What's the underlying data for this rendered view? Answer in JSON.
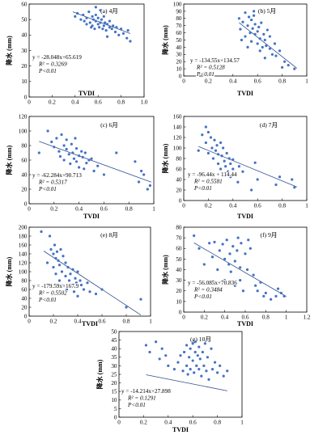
{
  "chart_data": [
    {
      "type": "scatter",
      "label": "(a) 4月",
      "xlabel": "TVDI",
      "ylabel": "降水 (mm)",
      "xlim": [
        0,
        1.0
      ],
      "ylim": [
        0,
        60
      ],
      "xticks": [
        "0",
        "0.2",
        "0.4",
        "0.6",
        "0.8",
        "1.0"
      ],
      "yticks": [
        "0",
        "10",
        "20",
        "30",
        "40",
        "50",
        "60"
      ],
      "annotation": [
        "y = -28.048x+65.619",
        "R² = 0.3269",
        "P<0.01"
      ],
      "trendline": {
        "slope": -28.048,
        "intercept": 65.619,
        "x_range": [
          0.38,
          0.88
        ]
      },
      "x": [
        0.4,
        0.42,
        0.45,
        0.47,
        0.48,
        0.5,
        0.5,
        0.52,
        0.53,
        0.55,
        0.55,
        0.56,
        0.57,
        0.58,
        0.58,
        0.6,
        0.6,
        0.61,
        0.62,
        0.63,
        0.64,
        0.65,
        0.65,
        0.66,
        0.67,
        0.68,
        0.7,
        0.7,
        0.72,
        0.73,
        0.75,
        0.76,
        0.78,
        0.8,
        0.82,
        0.85,
        0.86,
        0.88,
        0.62,
        0.58,
        0.54,
        0.68
      ],
      "y": [
        52,
        54,
        50,
        53,
        49,
        51,
        47,
        55,
        48,
        52,
        46,
        50,
        44,
        49,
        53,
        47,
        51,
        45,
        48,
        50,
        44,
        46,
        52,
        48,
        43,
        47,
        45,
        49,
        44,
        46,
        42,
        45,
        40,
        44,
        41,
        38,
        43,
        36,
        56,
        58,
        45,
        39
      ]
    },
    {
      "type": "scatter",
      "label": "(b) 5月",
      "xlabel": "TVDI",
      "ylabel": "降水 (mm)",
      "xlim": [
        0,
        1
      ],
      "ylim": [
        0,
        100
      ],
      "xticks": [
        "0",
        "0.2",
        "0.4",
        "0.6",
        "0.8",
        "1"
      ],
      "yticks": [
        "0",
        "10",
        "20",
        "30",
        "40",
        "50",
        "60",
        "70",
        "80",
        "90",
        "100"
      ],
      "annotation": [
        "y = -134.55x+134.57",
        "R² = 0.5128",
        "P<0.01"
      ],
      "trendline": {
        "slope": -134.55,
        "intercept": 134.57,
        "x_range": [
          0.45,
          0.92
        ]
      },
      "x": [
        0.45,
        0.46,
        0.48,
        0.5,
        0.5,
        0.52,
        0.53,
        0.54,
        0.55,
        0.55,
        0.56,
        0.57,
        0.58,
        0.58,
        0.6,
        0.6,
        0.61,
        0.62,
        0.63,
        0.64,
        0.65,
        0.66,
        0.67,
        0.68,
        0.7,
        0.7,
        0.72,
        0.74,
        0.75,
        0.78,
        0.8,
        0.82,
        0.85,
        0.9,
        0.47,
        0.52,
        0.57,
        0.62,
        0.66
      ],
      "y": [
        80,
        65,
        75,
        88,
        55,
        70,
        82,
        60,
        78,
        48,
        66,
        84,
        58,
        72,
        62,
        45,
        68,
        52,
        74,
        40,
        58,
        50,
        42,
        64,
        38,
        55,
        30,
        45,
        28,
        35,
        12,
        20,
        15,
        10,
        50,
        40,
        90,
        35,
        25
      ]
    },
    {
      "type": "scatter",
      "label": "(c) 6月",
      "xlabel": "TVDI",
      "ylabel": "降水 (mm)",
      "xlim": [
        0,
        1
      ],
      "ylim": [
        0,
        120
      ],
      "xticks": [
        "0",
        "0.2",
        "0.4",
        "0.6",
        "0.8",
        "1"
      ],
      "yticks": [
        "0",
        "20",
        "40",
        "60",
        "80",
        "100",
        "120"
      ],
      "annotation": [
        "y = -62.284x+90.713",
        "R² = 0.5317",
        "P<0.01"
      ],
      "trendline": {
        "slope": -62.284,
        "intercept": 90.713,
        "x_range": [
          0.08,
          0.98
        ]
      },
      "x": [
        0.08,
        0.15,
        0.18,
        0.2,
        0.22,
        0.24,
        0.25,
        0.26,
        0.28,
        0.28,
        0.3,
        0.3,
        0.32,
        0.33,
        0.34,
        0.35,
        0.36,
        0.37,
        0.38,
        0.38,
        0.4,
        0.4,
        0.42,
        0.43,
        0.44,
        0.45,
        0.46,
        0.48,
        0.5,
        0.52,
        0.55,
        0.6,
        0.7,
        0.85,
        0.88,
        0.9,
        0.92,
        0.95,
        0.97
      ],
      "y": [
        70,
        100,
        85,
        78,
        90,
        72,
        65,
        95,
        80,
        60,
        75,
        88,
        68,
        55,
        82,
        70,
        62,
        90,
        58,
        76,
        66,
        50,
        72,
        64,
        48,
        70,
        56,
        60,
        62,
        45,
        52,
        40,
        70,
        58,
        30,
        45,
        40,
        20,
        25
      ]
    },
    {
      "type": "scatter",
      "label": "(d) 7月",
      "xlabel": "TVDI",
      "ylabel": "降水 (mm)",
      "xlim": [
        0,
        1
      ],
      "ylim": [
        0,
        160
      ],
      "xticks": [
        "0",
        "0.2",
        "0.4",
        "0.6",
        "0.8",
        "1"
      ],
      "yticks": [
        "0",
        "20",
        "40",
        "60",
        "80",
        "100",
        "120",
        "140",
        "160"
      ],
      "annotation": [
        "y = -96.44x + 114.44",
        "R² = 0.5581",
        "P<0.01"
      ],
      "trendline": {
        "slope": -96.44,
        "intercept": 114.44,
        "x_range": [
          0.12,
          0.92
        ]
      },
      "x": [
        0.12,
        0.15,
        0.18,
        0.18,
        0.2,
        0.2,
        0.22,
        0.23,
        0.24,
        0.25,
        0.26,
        0.27,
        0.28,
        0.28,
        0.3,
        0.3,
        0.31,
        0.32,
        0.33,
        0.34,
        0.35,
        0.36,
        0.37,
        0.38,
        0.38,
        0.4,
        0.4,
        0.42,
        0.44,
        0.45,
        0.48,
        0.55,
        0.58,
        0.6,
        0.75,
        0.78,
        0.88,
        0.9
      ],
      "y": [
        95,
        125,
        140,
        110,
        130,
        90,
        120,
        100,
        80,
        115,
        95,
        105,
        70,
        88,
        110,
        60,
        85,
        100,
        75,
        65,
        90,
        55,
        80,
        70,
        45,
        60,
        78,
        50,
        35,
        65,
        55,
        20,
        72,
        40,
        30,
        45,
        40,
        25
      ]
    },
    {
      "type": "scatter",
      "label": "(e) 8月",
      "xlabel": "TVDI",
      "ylabel": "降水 (mm)",
      "xlim": [
        0,
        1
      ],
      "ylim": [
        0,
        200
      ],
      "xticks": [
        "0",
        "0.2",
        "0.4",
        "0.6",
        "0.8",
        "1"
      ],
      "yticks": [
        "0",
        "20",
        "40",
        "60",
        "80",
        "100",
        "120",
        "140",
        "160",
        "180",
        "200"
      ],
      "annotation": [
        "y = -179.59x+167.9",
        "R² = 0.5502",
        "P<0.01"
      ],
      "trendline": {
        "slope": -179.59,
        "intercept": 167.9,
        "x_range": [
          0.12,
          0.92
        ]
      },
      "x": [
        0.1,
        0.15,
        0.17,
        0.18,
        0.2,
        0.2,
        0.21,
        0.22,
        0.22,
        0.23,
        0.24,
        0.25,
        0.25,
        0.26,
        0.27,
        0.28,
        0.28,
        0.3,
        0.3,
        0.31,
        0.32,
        0.33,
        0.34,
        0.35,
        0.36,
        0.37,
        0.38,
        0.38,
        0.39,
        0.4,
        0.4,
        0.42,
        0.43,
        0.45,
        0.48,
        0.5,
        0.55,
        0.6,
        0.8,
        0.92
      ],
      "y": [
        190,
        120,
        180,
        150,
        140,
        110,
        160,
        130,
        95,
        145,
        125,
        80,
        115,
        150,
        100,
        135,
        70,
        120,
        90,
        60,
        110,
        80,
        95,
        70,
        105,
        55,
        85,
        65,
        75,
        100,
        45,
        80,
        70,
        60,
        75,
        55,
        50,
        60,
        20,
        38
      ]
    },
    {
      "type": "scatter",
      "label": "(f) 9月",
      "xlabel": "TVDI",
      "ylabel": "降水 (mm)",
      "xlim": [
        0,
        1.2
      ],
      "ylim": [
        0,
        80
      ],
      "xticks": [
        "0",
        "0.2",
        "0.4",
        "0.6",
        "0.8",
        "1",
        "1.2"
      ],
      "yticks": [
        "0",
        "10",
        "20",
        "30",
        "40",
        "50",
        "60",
        "70",
        "80"
      ],
      "annotation": [
        "y = -56.085x+70.836",
        "R² = 0.3484",
        "P<0.01"
      ],
      "trendline": {
        "slope": -56.085,
        "intercept": 70.836,
        "x_range": [
          0.1,
          1.0
        ]
      },
      "x": [
        0.1,
        0.15,
        0.2,
        0.25,
        0.28,
        0.3,
        0.33,
        0.35,
        0.38,
        0.4,
        0.4,
        0.42,
        0.44,
        0.45,
        0.46,
        0.48,
        0.5,
        0.5,
        0.52,
        0.53,
        0.55,
        0.55,
        0.56,
        0.58,
        0.6,
        0.62,
        0.63,
        0.65,
        0.68,
        0.7,
        0.72,
        0.75,
        0.78,
        0.8,
        0.85,
        0.9,
        0.92,
        0.95,
        0.98
      ],
      "y": [
        72,
        60,
        45,
        65,
        52,
        66,
        40,
        58,
        64,
        30,
        50,
        68,
        45,
        55,
        38,
        62,
        48,
        25,
        58,
        70,
        42,
        30,
        65,
        20,
        55,
        40,
        68,
        60,
        35,
        25,
        20,
        28,
        15,
        18,
        12,
        15,
        22,
        18,
        15
      ]
    },
    {
      "type": "scatter",
      "label": "(g) 10月",
      "xlabel": "TVDI",
      "ylabel": "降水 (mm)",
      "xlim": [
        0,
        1
      ],
      "ylim": [
        0,
        50
      ],
      "xticks": [
        "0",
        "0.2",
        "0.4",
        "0.6",
        "0.8",
        "1"
      ],
      "yticks": [
        "0",
        "5",
        "10",
        "15",
        "20",
        "25",
        "30",
        "35",
        "40",
        "45",
        "50"
      ],
      "annotation": [
        "y = -14.214x+27.898",
        "R² = 0.1291",
        "P<0.01"
      ],
      "trendline": {
        "slope": -14.214,
        "intercept": 27.898,
        "x_range": [
          0.22,
          0.88
        ]
      },
      "x": [
        0.22,
        0.25,
        0.3,
        0.33,
        0.35,
        0.38,
        0.4,
        0.45,
        0.48,
        0.5,
        0.52,
        0.53,
        0.55,
        0.55,
        0.56,
        0.57,
        0.58,
        0.58,
        0.6,
        0.6,
        0.61,
        0.62,
        0.62,
        0.63,
        0.64,
        0.65,
        0.65,
        0.66,
        0.67,
        0.68,
        0.69,
        0.7,
        0.71,
        0.72,
        0.73,
        0.75,
        0.76,
        0.78,
        0.8,
        0.82,
        0.85,
        0.88
      ],
      "y": [
        42,
        38,
        44,
        34,
        40,
        36,
        30,
        28,
        32,
        36,
        27,
        38,
        42,
        30,
        25,
        35,
        40,
        28,
        43,
        33,
        26,
        38,
        44,
        30,
        36,
        28,
        41,
        34,
        24,
        38,
        30,
        43,
        27,
        35,
        22,
        40,
        28,
        32,
        26,
        30,
        24,
        27
      ]
    }
  ]
}
